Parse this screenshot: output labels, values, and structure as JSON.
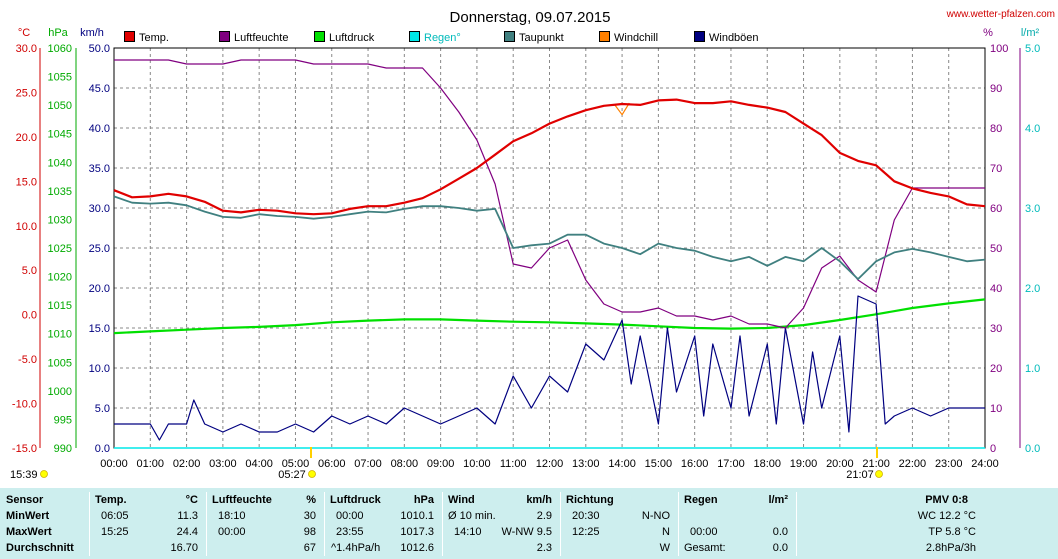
{
  "header": {
    "title": "Donnerstag, 09.07.2015",
    "site": "www.wetter-pfalzen.com"
  },
  "axes": {
    "temp_unit": "°C",
    "pressure_unit": "hPa",
    "wind_unit": "km/h",
    "humidity_unit": "%",
    "rain_unit": "l/m²",
    "temp_ticks": [
      "30.0",
      "25.0",
      "20.0",
      "15.0",
      "10.0",
      "5.0",
      "0.0",
      "-5.0",
      "-10.0",
      "-15.0"
    ],
    "pressure_ticks": [
      "1060",
      "1055",
      "1050",
      "1045",
      "1040",
      "1035",
      "1030",
      "1025",
      "1020",
      "1015",
      "1010",
      "1005",
      "1000",
      "995",
      "990"
    ],
    "wind_ticks": [
      "50.0",
      "45.0",
      "40.0",
      "35.0",
      "30.0",
      "25.0",
      "20.0",
      "15.0",
      "10.0",
      "5.0",
      "0.0"
    ],
    "humidity_ticks": [
      "100",
      "90",
      "80",
      "70",
      "60",
      "50",
      "40",
      "30",
      "20",
      "10",
      "0"
    ],
    "rain_ticks": [
      "5.0",
      "4.0",
      "3.0",
      "2.0",
      "1.0",
      "0.0"
    ],
    "time_ticks": [
      "00:00",
      "01:00",
      "02:00",
      "03:00",
      "04:00",
      "05:00",
      "06:00",
      "07:00",
      "08:00",
      "09:00",
      "10:00",
      "11:00",
      "12:00",
      "13:00",
      "14:00",
      "15:00",
      "16:00",
      "17:00",
      "18:00",
      "19:00",
      "20:00",
      "21:00",
      "22:00",
      "23:00",
      "24:00"
    ],
    "sunrise_time": "05:27",
    "sunset_time": "21:07",
    "now_time": "15:39"
  },
  "legend": [
    {
      "label": "Temp.",
      "color": "#e00000"
    },
    {
      "label": "Luftfeuchte",
      "color": "#800080"
    },
    {
      "label": "Luftdruck",
      "color": "#00e000"
    },
    {
      "label": "Regen°",
      "color": "#00e8e8"
    },
    {
      "label": "Taupunkt",
      "color": "#408080"
    },
    {
      "label": "Windchill",
      "color": "#ff8000"
    },
    {
      "label": "Windböen",
      "color": "#000080"
    }
  ],
  "chart_data": {
    "type": "line",
    "title": "Donnerstag, 09.07.2015",
    "x_unit": "hour of day",
    "xlim": [
      0,
      24
    ],
    "series": [
      {
        "name": "Temp.",
        "axis": "°C",
        "ylim": [
          -15,
          30
        ],
        "color": "#e00000",
        "x": [
          0,
          0.5,
          1,
          1.5,
          2,
          2.5,
          3,
          3.5,
          4,
          4.5,
          5,
          5.5,
          6,
          6.5,
          7,
          7.5,
          8,
          8.5,
          9,
          9.5,
          10,
          10.5,
          11,
          11.5,
          12,
          12.5,
          13,
          13.5,
          14,
          14.5,
          15,
          15.5,
          16,
          16.5,
          17,
          17.5,
          18,
          18.5,
          19,
          19.5,
          20,
          20.5,
          21,
          21.5,
          22,
          22.5,
          23,
          23.5,
          24
        ],
        "y": [
          14.0,
          13.2,
          13.3,
          13.6,
          13.3,
          12.7,
          11.7,
          11.5,
          11.8,
          11.7,
          11.4,
          11.3,
          11.4,
          11.9,
          12.2,
          12.2,
          12.6,
          13.1,
          14.1,
          15.3,
          16.5,
          18.0,
          19.5,
          20.4,
          21.5,
          22.3,
          23.0,
          23.5,
          23.7,
          23.6,
          24.1,
          24.2,
          23.8,
          23.8,
          24.0,
          23.6,
          23.3,
          22.8,
          21.5,
          20.2,
          18.2,
          17.3,
          16.8,
          15.0,
          14.2,
          13.7,
          13.3,
          12.4,
          12.2
        ]
      },
      {
        "name": "Luftfeuchte",
        "axis": "%",
        "ylim": [
          0,
          100
        ],
        "color": "#800080",
        "x": [
          0,
          0.5,
          1,
          1.5,
          2,
          2.5,
          3,
          3.5,
          4,
          4.5,
          5,
          5.5,
          6,
          6.5,
          7,
          7.5,
          8,
          8.5,
          9,
          9.5,
          10,
          10.5,
          11,
          11.5,
          12,
          12.5,
          13,
          13.5,
          14,
          14.5,
          15,
          15.5,
          16,
          16.5,
          17,
          17.5,
          18,
          18.5,
          19,
          19.5,
          20,
          20.5,
          21,
          21.5,
          22,
          22.5,
          23,
          23.5,
          24
        ],
        "y": [
          97,
          97,
          97,
          97,
          96,
          96,
          96,
          97,
          97,
          97,
          97,
          96,
          96,
          96,
          96,
          95,
          95,
          95,
          90,
          84,
          77,
          66,
          46,
          45,
          50,
          52,
          42,
          36,
          34,
          34,
          35,
          33,
          33,
          32,
          33,
          31,
          31,
          30,
          35,
          45,
          48,
          42,
          39,
          57,
          65,
          65,
          65,
          65,
          65
        ]
      },
      {
        "name": "Luftdruck",
        "axis": "hPa",
        "ylim": [
          990,
          1060
        ],
        "color": "#00e000",
        "x": [
          0,
          1,
          2,
          3,
          4,
          5,
          6,
          7,
          8,
          9,
          10,
          11,
          12,
          13,
          14,
          15,
          16,
          17,
          18,
          19,
          20,
          21,
          22,
          23,
          24
        ],
        "y": [
          1010.1,
          1010.4,
          1010.7,
          1011.0,
          1011.2,
          1011.5,
          1012.0,
          1012.3,
          1012.5,
          1012.5,
          1012.3,
          1012.1,
          1012.0,
          1011.8,
          1011.6,
          1011.3,
          1011.0,
          1010.9,
          1011.0,
          1011.5,
          1012.4,
          1013.4,
          1014.5,
          1015.3,
          1016.0
        ]
      },
      {
        "name": "Taupunkt",
        "axis": "°C",
        "ylim": [
          -15,
          30
        ],
        "color": "#408080",
        "x": [
          0,
          0.5,
          1,
          1.5,
          2,
          2.5,
          3,
          3.5,
          4,
          4.5,
          5,
          5.5,
          6,
          6.5,
          7,
          7.5,
          8,
          8.5,
          9,
          9.5,
          10,
          10.5,
          11,
          11.5,
          12,
          12.5,
          13,
          13.5,
          14,
          14.5,
          15,
          15.5,
          16,
          16.5,
          17,
          17.5,
          18,
          18.5,
          19,
          19.5,
          20,
          20.5,
          21,
          21.5,
          22,
          22.5,
          23,
          23.5,
          24
        ],
        "y": [
          13.3,
          12.6,
          12.5,
          12.6,
          12.3,
          11.6,
          11.0,
          10.9,
          11.3,
          11.1,
          11.0,
          10.8,
          11.0,
          11.3,
          11.6,
          11.5,
          11.9,
          12.2,
          12.2,
          12.0,
          11.7,
          11.9,
          7.5,
          7.8,
          8.0,
          9.0,
          9.0,
          8.0,
          7.5,
          6.8,
          8.0,
          7.5,
          7.2,
          6.5,
          6.0,
          6.5,
          5.5,
          6.5,
          6.0,
          7.5,
          6.0,
          4.0,
          6.0,
          7.0,
          7.4,
          7.0,
          6.5,
          6.0,
          6.2
        ]
      },
      {
        "name": "Windchill",
        "axis": "°C",
        "ylim": [
          -15,
          30
        ],
        "color": "#ff8000",
        "x": [
          13.8,
          14.0,
          14.2
        ],
        "y": [
          23.6,
          22.5,
          23.8
        ]
      },
      {
        "name": "Windböen",
        "axis": "km/h",
        "ylim": [
          0,
          50
        ],
        "color": "#000080",
        "x": [
          0,
          0.5,
          1,
          1.25,
          1.5,
          2,
          2.2,
          2.5,
          3,
          3.5,
          4,
          4.5,
          5,
          5.5,
          6,
          6.5,
          7,
          7.5,
          8,
          8.5,
          9,
          9.5,
          10,
          10.5,
          11,
          11.5,
          12,
          12.5,
          13,
          13.5,
          14,
          14.25,
          14.5,
          15,
          15.25,
          15.5,
          16,
          16.25,
          16.5,
          17,
          17.25,
          17.5,
          18,
          18.25,
          18.5,
          19,
          19.25,
          19.5,
          20,
          20.25,
          20.5,
          21,
          21.25,
          21.5,
          22,
          22.5,
          23,
          23.5,
          24
        ],
        "y": [
          3,
          3,
          3,
          1,
          3,
          3,
          6,
          3,
          2,
          3,
          2,
          2,
          3,
          2,
          4,
          3,
          4,
          3,
          5,
          4,
          3,
          4,
          5,
          3,
          9,
          5,
          9,
          7,
          13,
          11,
          16,
          8,
          14,
          3,
          15,
          7,
          14,
          4,
          13,
          5,
          14,
          4,
          13,
          3,
          15,
          3,
          12,
          5,
          14,
          2,
          19,
          18,
          3,
          4,
          5,
          4,
          5,
          5,
          5
        ]
      },
      {
        "name": "Regen°",
        "axis": "l/m²",
        "ylim": [
          0,
          5
        ],
        "color": "#00e8e8",
        "x": [
          0,
          24
        ],
        "y": [
          0,
          0
        ]
      }
    ]
  },
  "stats": {
    "headers": {
      "sensor": "Sensor",
      "temp": "Temp.",
      "temp_unit": "°C",
      "hum": "Luftfeuchte",
      "hum_unit": "%",
      "press": "Luftdruck",
      "press_unit": "hPa",
      "wind": "Wind",
      "wind_unit": "km/h",
      "dir": "Richtung",
      "rain": "Regen",
      "rain_unit": "l/m²",
      "pmv": "PMV 0:8"
    },
    "rows": [
      {
        "label": "MinWert",
        "temp_time": "06:05",
        "temp": "11.3",
        "hum_time": "18:10",
        "hum": "30",
        "press_time": "00:00",
        "press": "1010.1",
        "wind_time": "Ø 10 min.",
        "wind": "2.9",
        "dir_time": "20:30",
        "dir": "N-NO",
        "rain_time": "",
        "rain": "",
        "pmv": "WC 12.2 °C"
      },
      {
        "label": "MaxWert",
        "temp_time": "15:25",
        "temp": "24.4",
        "hum_time": "00:00",
        "hum": "98",
        "press_time": "23:55",
        "press": "1017.3",
        "wind_time": "14:10",
        "wind": "W-NW 9.5",
        "dir_time": "12:25",
        "dir": "N",
        "rain_time": "00:00",
        "rain": "0.0",
        "pmv": "TP 5.8 °C"
      },
      {
        "label": "Durchschnitt",
        "temp_time": "",
        "temp": "16.70",
        "hum_time": "",
        "hum": "67",
        "press_time": "^1.4hPa/h",
        "press": "1012.6",
        "wind_time": "",
        "wind": "2.3",
        "dir_time": "",
        "dir": "W",
        "rain_time": "Gesamt:",
        "rain": "0.0",
        "pmv": "2.8hPa/3h"
      }
    ]
  }
}
